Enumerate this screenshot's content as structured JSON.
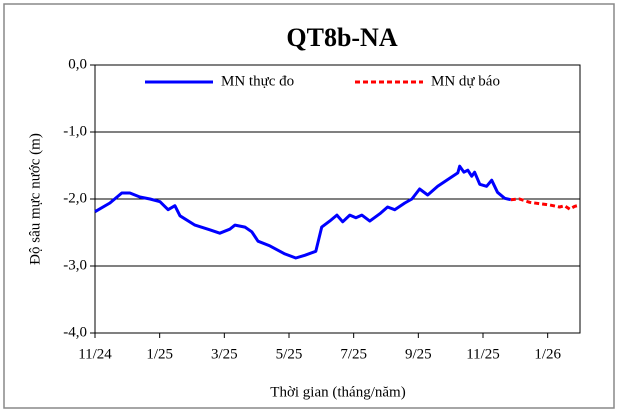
{
  "chart_data": {
    "type": "line",
    "title": "QT8b-NA",
    "x_label": "Thời gian (tháng/năm)",
    "y_label": "Độ sâu mực nước (m)",
    "xlim": [
      0,
      15
    ],
    "ylim": [
      -4,
      0
    ],
    "xticks": [
      {
        "value": 0,
        "label": "11/24"
      },
      {
        "value": 2,
        "label": "1/25"
      },
      {
        "value": 4,
        "label": "3/25"
      },
      {
        "value": 6,
        "label": "5/25"
      },
      {
        "value": 8,
        "label": "7/25"
      },
      {
        "value": 10,
        "label": "9/25"
      },
      {
        "value": 12,
        "label": "11/25"
      },
      {
        "value": 14,
        "label": "1/26"
      }
    ],
    "yticks": [
      {
        "value": 0,
        "label": "0,0"
      },
      {
        "value": -1,
        "label": "-1,0"
      },
      {
        "value": -2,
        "label": "-2,0"
      },
      {
        "value": -3,
        "label": "-3,0"
      },
      {
        "value": -4,
        "label": "-4,0"
      }
    ],
    "grid": true,
    "legend": "top",
    "series": [
      {
        "name": "MN thực đo",
        "color": "#0000ff",
        "dash": false,
        "x": [
          0,
          0.46,
          0.83,
          1.08,
          1.39,
          1.7,
          2.01,
          2.26,
          2.47,
          2.63,
          3.09,
          3.55,
          3.86,
          4.17,
          4.33,
          4.64,
          4.85,
          5.04,
          5.41,
          5.87,
          6.21,
          6.49,
          6.83,
          7.01,
          7.26,
          7.48,
          7.66,
          7.88,
          8.07,
          8.25,
          8.5,
          8.81,
          9.05,
          9.27,
          9.58,
          9.8,
          10.04,
          10.29,
          10.6,
          10.97,
          11.22,
          11.28,
          11.41,
          11.53,
          11.65,
          11.74,
          11.9,
          12.11,
          12.27,
          12.45,
          12.67,
          12.86
        ],
        "values": [
          -2.19,
          -2.06,
          -1.91,
          -1.91,
          -1.97,
          -2.0,
          -2.04,
          -2.16,
          -2.1,
          -2.25,
          -2.39,
          -2.46,
          -2.51,
          -2.45,
          -2.39,
          -2.42,
          -2.49,
          -2.63,
          -2.7,
          -2.82,
          -2.88,
          -2.84,
          -2.78,
          -2.42,
          -2.33,
          -2.24,
          -2.34,
          -2.24,
          -2.28,
          -2.24,
          -2.33,
          -2.22,
          -2.12,
          -2.16,
          -2.06,
          -2.0,
          -1.85,
          -1.94,
          -1.81,
          -1.69,
          -1.61,
          -1.51,
          -1.6,
          -1.57,
          -1.66,
          -1.6,
          -1.78,
          -1.81,
          -1.72,
          -1.9,
          -1.99,
          -2.01
        ]
      },
      {
        "name": "MN dự báo",
        "color": "#ff0000",
        "dash": true,
        "x": [
          12.86,
          13.13,
          13.44,
          13.75,
          14.06,
          14.37,
          14.52,
          14.68,
          14.83,
          14.99
        ],
        "values": [
          -2.01,
          -2.0,
          -2.05,
          -2.07,
          -2.09,
          -2.12,
          -2.1,
          -2.15,
          -2.11,
          -2.09
        ]
      }
    ]
  }
}
